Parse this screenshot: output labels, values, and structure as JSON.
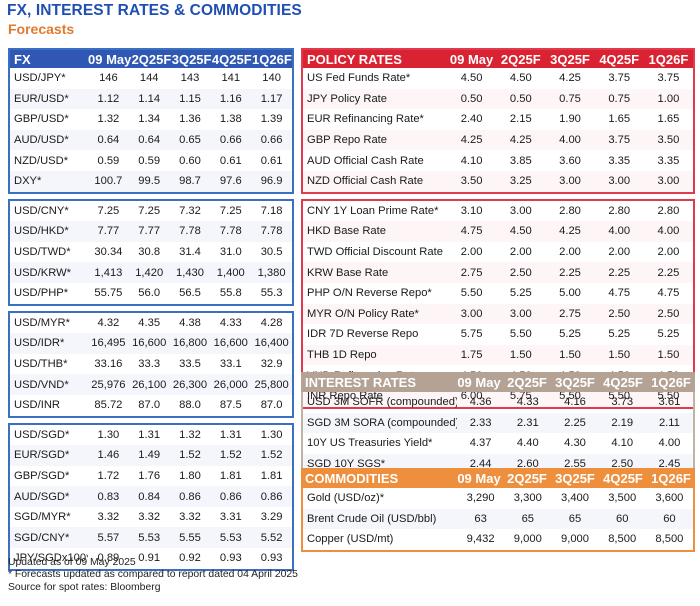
{
  "header": {
    "title": "FX, INTEREST RATES & COMMODITIES",
    "subtitle": "Forecasts"
  },
  "fx": {
    "header": [
      "FX",
      "09 May",
      "2Q25F",
      "3Q25F",
      "4Q25F",
      "1Q26F"
    ],
    "groups": [
      [
        [
          "USD/JPY*",
          "146",
          "144",
          "143",
          "141",
          "140"
        ],
        [
          "EUR/USD*",
          "1.12",
          "1.14",
          "1.15",
          "1.16",
          "1.17"
        ],
        [
          "GBP/USD*",
          "1.32",
          "1.34",
          "1.36",
          "1.38",
          "1.39"
        ],
        [
          "AUD/USD*",
          "0.64",
          "0.64",
          "0.65",
          "0.66",
          "0.66"
        ],
        [
          "NZD/USD*",
          "0.59",
          "0.59",
          "0.60",
          "0.61",
          "0.61"
        ],
        [
          "DXY*",
          "100.7",
          "99.5",
          "98.7",
          "97.6",
          "96.9"
        ]
      ],
      [
        [
          "USD/CNY*",
          "7.25",
          "7.25",
          "7.32",
          "7.25",
          "7.18"
        ],
        [
          "USD/HKD*",
          "7.77",
          "7.77",
          "7.78",
          "7.78",
          "7.78"
        ],
        [
          "USD/TWD*",
          "30.34",
          "30.8",
          "31.4",
          "31.0",
          "30.5"
        ],
        [
          "USD/KRW*",
          "1,413",
          "1,420",
          "1,430",
          "1,400",
          "1,380"
        ],
        [
          "USD/PHP*",
          "55.75",
          "56.0",
          "56.5",
          "55.8",
          "55.3"
        ]
      ],
      [
        [
          "USD/MYR*",
          "4.32",
          "4.35",
          "4.38",
          "4.33",
          "4.28"
        ],
        [
          "USD/IDR*",
          "16,495",
          "16,600",
          "16,800",
          "16,600",
          "16,400"
        ],
        [
          "USD/THB*",
          "33.16",
          "33.3",
          "33.5",
          "33.1",
          "32.9"
        ],
        [
          "USD/VND*",
          "25,976",
          "26,100",
          "26,300",
          "26,000",
          "25,800"
        ],
        [
          "USD/INR",
          "85.72",
          "87.0",
          "88.0",
          "87.5",
          "87.0"
        ]
      ],
      [
        [
          "USD/SGD*",
          "1.30",
          "1.31",
          "1.32",
          "1.31",
          "1.30"
        ],
        [
          "EUR/SGD*",
          "1.46",
          "1.49",
          "1.52",
          "1.52",
          "1.52"
        ],
        [
          "GBP/SGD*",
          "1.72",
          "1.76",
          "1.80",
          "1.81",
          "1.81"
        ],
        [
          "AUD/SGD*",
          "0.83",
          "0.84",
          "0.86",
          "0.86",
          "0.86"
        ],
        [
          "SGD/MYR*",
          "3.32",
          "3.32",
          "3.32",
          "3.31",
          "3.29"
        ],
        [
          "SGD/CNY*",
          "5.57",
          "5.53",
          "5.55",
          "5.53",
          "5.52"
        ],
        [
          "JPY/SGDx100*",
          "0.89",
          "0.91",
          "0.92",
          "0.93",
          "0.93"
        ]
      ]
    ]
  },
  "policy": {
    "header": [
      "POLICY RATES",
      "09 May",
      "2Q25F",
      "3Q25F",
      "4Q25F",
      "1Q26F"
    ],
    "groups": [
      [
        [
          "US Fed Funds Rate*",
          "4.50",
          "4.50",
          "4.25",
          "3.75",
          "3.75"
        ],
        [
          "JPY Policy Rate",
          "0.50",
          "0.50",
          "0.75",
          "0.75",
          "1.00"
        ],
        [
          "EUR Refinancing Rate*",
          "2.40",
          "2.15",
          "1.90",
          "1.65",
          "1.65"
        ],
        [
          "GBP Repo Rate",
          "4.25",
          "4.25",
          "4.00",
          "3.75",
          "3.50"
        ],
        [
          "AUD Official Cash Rate",
          "4.10",
          "3.85",
          "3.60",
          "3.35",
          "3.35"
        ],
        [
          "NZD Official Cash Rate",
          "3.50",
          "3.25",
          "3.00",
          "3.00",
          "3.00"
        ]
      ],
      [
        [
          "CNY 1Y Loan Prime Rate*",
          "3.10",
          "3.00",
          "2.80",
          "2.80",
          "2.80"
        ],
        [
          "HKD Base Rate",
          "4.75",
          "4.50",
          "4.25",
          "4.00",
          "4.00"
        ],
        [
          "TWD Official Discount Rate",
          "2.00",
          "2.00",
          "2.00",
          "2.00",
          "2.00"
        ],
        [
          "KRW Base Rate",
          "2.75",
          "2.50",
          "2.25",
          "2.25",
          "2.25"
        ],
        [
          "PHP O/N Reverse Repo*",
          "5.50",
          "5.25",
          "5.00",
          "4.75",
          "4.75"
        ],
        [
          "MYR O/N Policy Rate*",
          "3.00",
          "3.00",
          "2.75",
          "2.50",
          "2.50"
        ],
        [
          "IDR 7D Reverse Repo",
          "5.75",
          "5.50",
          "5.25",
          "5.25",
          "5.25"
        ],
        [
          "THB 1D Repo",
          "1.75",
          "1.50",
          "1.50",
          "1.50",
          "1.50"
        ],
        [
          "VND Refinancing Rate",
          "4.50",
          "4.50",
          "4.50",
          "4.50",
          "4.50"
        ],
        [
          "INR Repo Rate",
          "6.00",
          "5.75",
          "5.50",
          "5.50",
          "5.50"
        ]
      ]
    ]
  },
  "interest": {
    "header": [
      "INTEREST RATES",
      "09 May",
      "2Q25F",
      "3Q25F",
      "4Q25F",
      "1Q26F"
    ],
    "rows": [
      [
        "USD 3M SOFR (compounded)*",
        "4.36",
        "4.33",
        "4.16",
        "3.73",
        "3.61"
      ],
      [
        "SGD 3M SORA (compounded)*",
        "2.33",
        "2.31",
        "2.25",
        "2.19",
        "2.11"
      ],
      [
        "10Y US Treasuries Yield*",
        "4.37",
        "4.40",
        "4.30",
        "4.10",
        "4.00"
      ],
      [
        "SGD 10Y SGS*",
        "2.44",
        "2.60",
        "2.55",
        "2.50",
        "2.45"
      ]
    ]
  },
  "commodities": {
    "header": [
      "COMMODITIES",
      "09 May",
      "2Q25F",
      "3Q25F",
      "4Q25F",
      "1Q26F"
    ],
    "rows": [
      [
        "Gold (USD/oz)*",
        "3,290",
        "3,300",
        "3,400",
        "3,500",
        "3,600"
      ],
      [
        "Brent Crude Oil (USD/bbl)",
        "63",
        "65",
        "65",
        "60",
        "60"
      ],
      [
        "Copper (USD/mt)",
        "9,432",
        "9,000",
        "9,000",
        "8,500",
        "8,500"
      ]
    ]
  },
  "notes": [
    "Updated as of 09 May 2025",
    "* Forecasts updated as compared to report dated 04 April 2025",
    "Source for spot rates: Bloomberg"
  ]
}
